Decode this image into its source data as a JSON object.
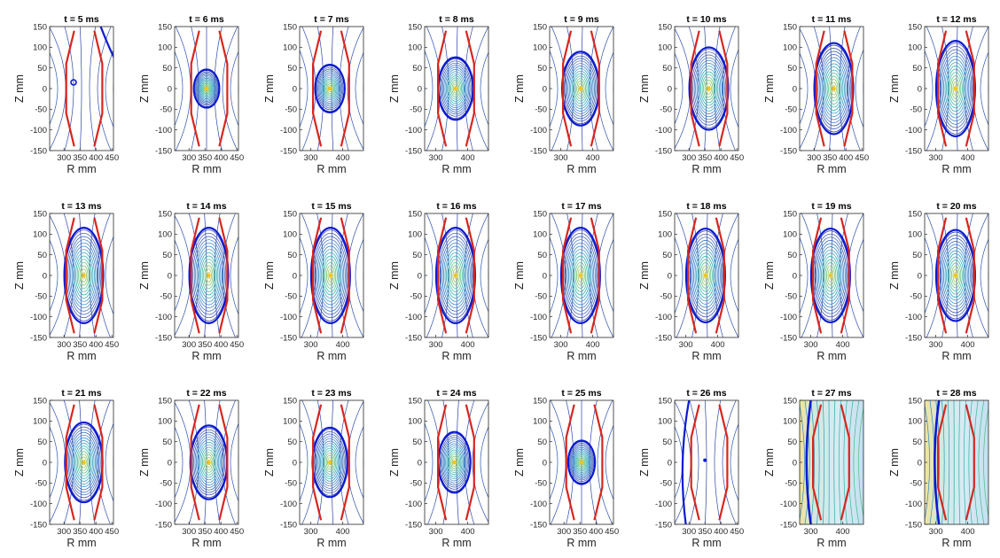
{
  "chart_data": {
    "type": "contour",
    "xlabel": "R mm",
    "ylabel": "Z mm",
    "xlim_default": [
      255,
      455
    ],
    "xlim_wide": [
      265,
      465
    ],
    "ylim": [
      -150,
      150
    ],
    "yticks": [
      -150,
      -100,
      -50,
      0,
      50,
      100,
      150
    ],
    "xticks_default": [
      300,
      350,
      400,
      450
    ],
    "xticks_wide": [
      300,
      400
    ],
    "colors": {
      "flux_lines_low": "#2f3b9e",
      "flux_lines_high": "#e6c21d",
      "separatrix": "#0a1ad2",
      "limiter": "#d7261e",
      "axis_box": "#262626"
    },
    "limiter_outline_R": [
      332,
      307,
      307,
      332
    ],
    "limiter_outline_Z": [
      140,
      60,
      -60,
      -140
    ],
    "limiter_outline_R_outboard": [
      395,
      420,
      420,
      395
    ],
    "panels": [
      {
        "title": "t = 5 ms",
        "phase": "startup",
        "xticks": "default",
        "plasma": null
      },
      {
        "title": "t = 6 ms",
        "phase": "plasma",
        "xticks": "default",
        "plasma": {
          "R0": 355,
          "Z0": 0,
          "a": 38,
          "b": 44
        }
      },
      {
        "title": "t = 7 ms",
        "phase": "plasma",
        "xticks": "wide",
        "plasma": {
          "R0": 360,
          "Z0": 0,
          "a": 44,
          "b": 55
        }
      },
      {
        "title": "t = 8 ms",
        "phase": "plasma",
        "xticks": "wide",
        "plasma": {
          "R0": 362,
          "Z0": 0,
          "a": 52,
          "b": 72
        }
      },
      {
        "title": "t = 9 ms",
        "phase": "plasma",
        "xticks": "wide",
        "plasma": {
          "R0": 362,
          "Z0": 0,
          "a": 55,
          "b": 85
        }
      },
      {
        "title": "t = 10 ms",
        "phase": "plasma",
        "xticks": "default",
        "plasma": {
          "R0": 362,
          "Z0": 0,
          "a": 58,
          "b": 95
        }
      },
      {
        "title": "t = 11 ms",
        "phase": "plasma",
        "xticks": "default",
        "plasma": {
          "R0": 362,
          "Z0": 0,
          "a": 58,
          "b": 105
        }
      },
      {
        "title": "t = 12 ms",
        "phase": "plasma",
        "xticks": "wide",
        "plasma": {
          "R0": 362,
          "Z0": 0,
          "a": 58,
          "b": 110
        }
      },
      {
        "title": "t = 13 ms",
        "phase": "plasma",
        "xticks": "default",
        "plasma": {
          "R0": 362,
          "Z0": 0,
          "a": 58,
          "b": 110
        }
      },
      {
        "title": "t = 14 ms",
        "phase": "plasma",
        "xticks": "default",
        "plasma": {
          "R0": 362,
          "Z0": 0,
          "a": 58,
          "b": 110
        }
      },
      {
        "title": "t = 15 ms",
        "phase": "plasma",
        "xticks": "wide",
        "plasma": {
          "R0": 362,
          "Z0": 0,
          "a": 58,
          "b": 110
        }
      },
      {
        "title": "t = 16 ms",
        "phase": "plasma",
        "xticks": "wide",
        "plasma": {
          "R0": 362,
          "Z0": 0,
          "a": 58,
          "b": 110
        }
      },
      {
        "title": "t = 17 ms",
        "phase": "plasma",
        "xticks": "wide",
        "plasma": {
          "R0": 362,
          "Z0": 0,
          "a": 58,
          "b": 110
        }
      },
      {
        "title": "t = 18 ms",
        "phase": "plasma",
        "xticks": "wide",
        "plasma": {
          "R0": 362,
          "Z0": 0,
          "a": 58,
          "b": 108
        }
      },
      {
        "title": "t = 19 ms",
        "phase": "plasma",
        "xticks": "wide",
        "plasma": {
          "R0": 362,
          "Z0": 0,
          "a": 58,
          "b": 108
        }
      },
      {
        "title": "t = 20 ms",
        "phase": "plasma",
        "xticks": "wide",
        "plasma": {
          "R0": 362,
          "Z0": 0,
          "a": 58,
          "b": 105
        }
      },
      {
        "title": "t = 21 ms",
        "phase": "plasma",
        "xticks": "default",
        "plasma": {
          "R0": 362,
          "Z0": 0,
          "a": 56,
          "b": 92
        }
      },
      {
        "title": "t = 22 ms",
        "phase": "plasma",
        "xticks": "default",
        "plasma": {
          "R0": 362,
          "Z0": 0,
          "a": 55,
          "b": 85
        }
      },
      {
        "title": "t = 23 ms",
        "phase": "plasma",
        "xticks": "wide",
        "plasma": {
          "R0": 360,
          "Z0": 0,
          "a": 52,
          "b": 80
        }
      },
      {
        "title": "t = 24 ms",
        "phase": "plasma",
        "xticks": "wide",
        "plasma": {
          "R0": 358,
          "Z0": 0,
          "a": 48,
          "b": 70
        }
      },
      {
        "title": "t = 25 ms",
        "phase": "plasma",
        "xticks": "default",
        "plasma": {
          "R0": 355,
          "Z0": 0,
          "a": 40,
          "b": 50
        }
      },
      {
        "title": "t = 26 ms",
        "phase": "decay",
        "xticks": "default",
        "plasma": null
      },
      {
        "title": "t = 27 ms",
        "phase": "vacuum",
        "xticks": "wide",
        "plasma": null
      },
      {
        "title": "t = 28 ms",
        "phase": "vacuum",
        "xticks": "wide",
        "plasma": null
      }
    ]
  }
}
